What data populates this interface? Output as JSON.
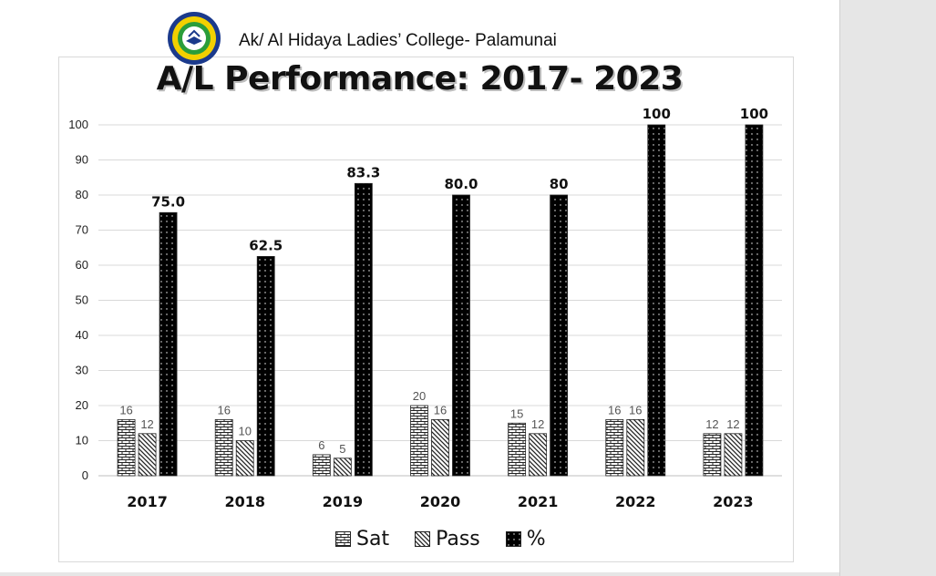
{
  "header": {
    "school_name": "Ak/ Al Hidaya Ladies’ College- Palamunai",
    "logo_text": "AL HIDAYA LADIES COLLEGE PALAMUNAI"
  },
  "chart_data": {
    "type": "bar",
    "title": "A/L Performance: 2017- 2023",
    "categories": [
      "2017",
      "2018",
      "2019",
      "2020",
      "2021",
      "2022",
      "2023"
    ],
    "series": [
      {
        "name": "Sat",
        "values": [
          16,
          16,
          6,
          20,
          15,
          16,
          12
        ],
        "labels": [
          "16",
          "16",
          "6",
          "20",
          "15",
          "16",
          "12"
        ],
        "pattern": "brick"
      },
      {
        "name": "Pass",
        "values": [
          12,
          10,
          5,
          16,
          12,
          16,
          12
        ],
        "labels": [
          "12",
          "10",
          "5",
          "16",
          "12",
          "16",
          "12"
        ],
        "pattern": "diagonal"
      },
      {
        "name": "%",
        "values": [
          75.0,
          62.5,
          83.3,
          80.0,
          80,
          100,
          100
        ],
        "labels": [
          "75.0",
          "62.5",
          "83.3",
          "80.0",
          "80",
          "100",
          "100"
        ],
        "pattern": "dotted-black"
      }
    ],
    "ylim": [
      0,
      100
    ],
    "yticks": [
      0,
      10,
      20,
      30,
      40,
      50,
      60,
      70,
      80,
      90,
      100
    ],
    "grid": true,
    "legend_position": "bottom"
  }
}
